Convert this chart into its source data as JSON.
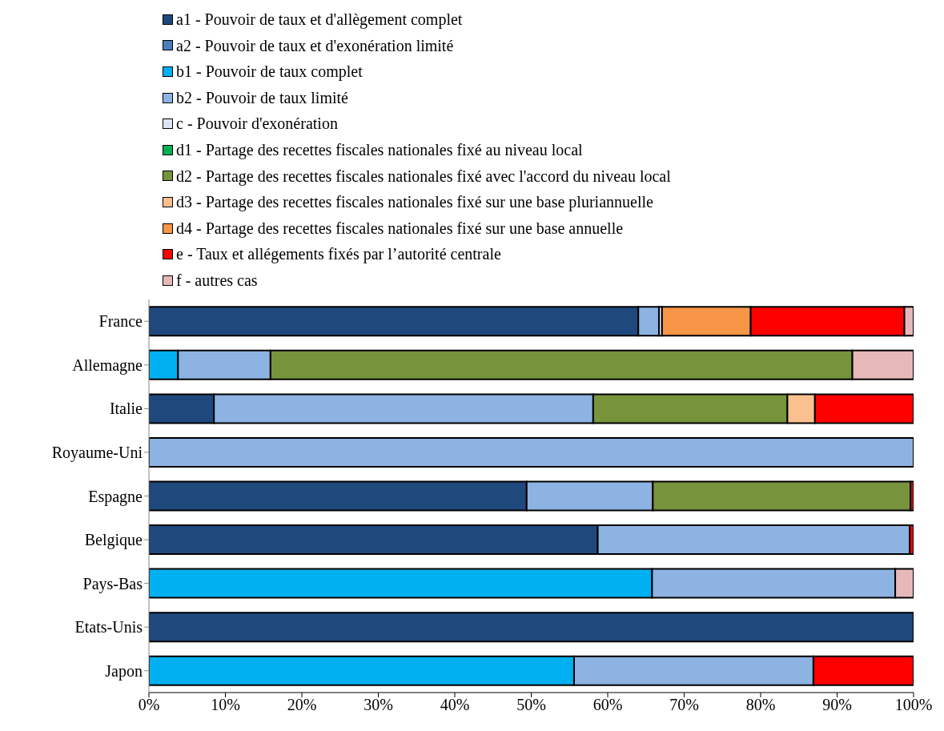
{
  "chart_data": {
    "type": "bar",
    "orientation": "horizontal",
    "stacked": true,
    "legend": "top",
    "grid": false,
    "categories": [
      "France",
      "Allemagne",
      "Italie",
      "Royaume-Uni",
      "Espagne",
      "Belgique",
      "Pays-Bas",
      "Etats-Unis",
      "Japon"
    ],
    "xlim": [
      0,
      100
    ],
    "xticks": [
      {
        "value": 0,
        "label": "0%"
      },
      {
        "value": 10,
        "label": "10%"
      },
      {
        "value": 20,
        "label": "20%"
      },
      {
        "value": 30,
        "label": "30%"
      },
      {
        "value": 40,
        "label": "40%"
      },
      {
        "value": 50,
        "label": "50%"
      },
      {
        "value": 60,
        "label": "60%"
      },
      {
        "value": 70,
        "label": "70%"
      },
      {
        "value": 80,
        "label": "80%"
      },
      {
        "value": 90,
        "label": "90%"
      },
      {
        "value": 100,
        "label": "100%"
      }
    ],
    "series": [
      {
        "name": "a1 - Pouvoir de taux et d'allègement complet",
        "color": "#1f497d",
        "values": [
          64.0,
          null,
          8.5,
          null,
          49.4,
          58.7,
          null,
          100,
          null
        ]
      },
      {
        "name": "a2 - Pouvoir de taux et d'exonération limité",
        "color": "#4a7ebb",
        "values": [
          null,
          null,
          null,
          null,
          null,
          null,
          null,
          null,
          null
        ]
      },
      {
        "name": "b1 - Pouvoir de taux complet",
        "color": "#00b0f0",
        "values": [
          null,
          3.8,
          null,
          null,
          null,
          null,
          65.8,
          null,
          55.6
        ]
      },
      {
        "name": "b2 - Pouvoir de taux limité",
        "color": "#8db3e2",
        "values": [
          2.7,
          12.1,
          49.6,
          100,
          16.5,
          40.8,
          31.8,
          null,
          31.3
        ]
      },
      {
        "name": "c - Pouvoir d'exonération",
        "color": "#dce6f2",
        "values": [
          0.4,
          null,
          null,
          null,
          null,
          null,
          null,
          null,
          null
        ]
      },
      {
        "name": "d1 - Partage des recettes fiscales nationales fixé au niveau local",
        "color": "#00b050",
        "values": [
          null,
          null,
          null,
          null,
          null,
          null,
          null,
          null,
          null
        ]
      },
      {
        "name": "d2 - Partage des recettes fiscales nationales fixé avec l'accord du niveau local",
        "color": "#77933c",
        "values": [
          null,
          76.1,
          25.4,
          null,
          33.7,
          null,
          null,
          null,
          null
        ]
      },
      {
        "name": "d3 - Partage des recettes fiscales nationales fixé sur une base pluriannuelle",
        "color": "#fac090",
        "values": [
          null,
          null,
          3.6,
          null,
          null,
          null,
          null,
          null,
          null
        ]
      },
      {
        "name": "d4 - Partage des recettes fiscales nationales fixé sur une base annuelle",
        "color": "#f79646",
        "values": [
          11.6,
          null,
          null,
          null,
          null,
          null,
          null,
          null,
          null
        ]
      },
      {
        "name": "e - Taux et allégements fixés par l’autorité centrale",
        "color": "#ff0000",
        "values": [
          20.1,
          null,
          12.9,
          null,
          0.4,
          0.5,
          null,
          null,
          13.1
        ]
      },
      {
        "name": "f - autres cas",
        "color": "#e6b9b8",
        "values": [
          1.2,
          8.0,
          null,
          null,
          null,
          null,
          2.4,
          null,
          null
        ]
      }
    ]
  }
}
